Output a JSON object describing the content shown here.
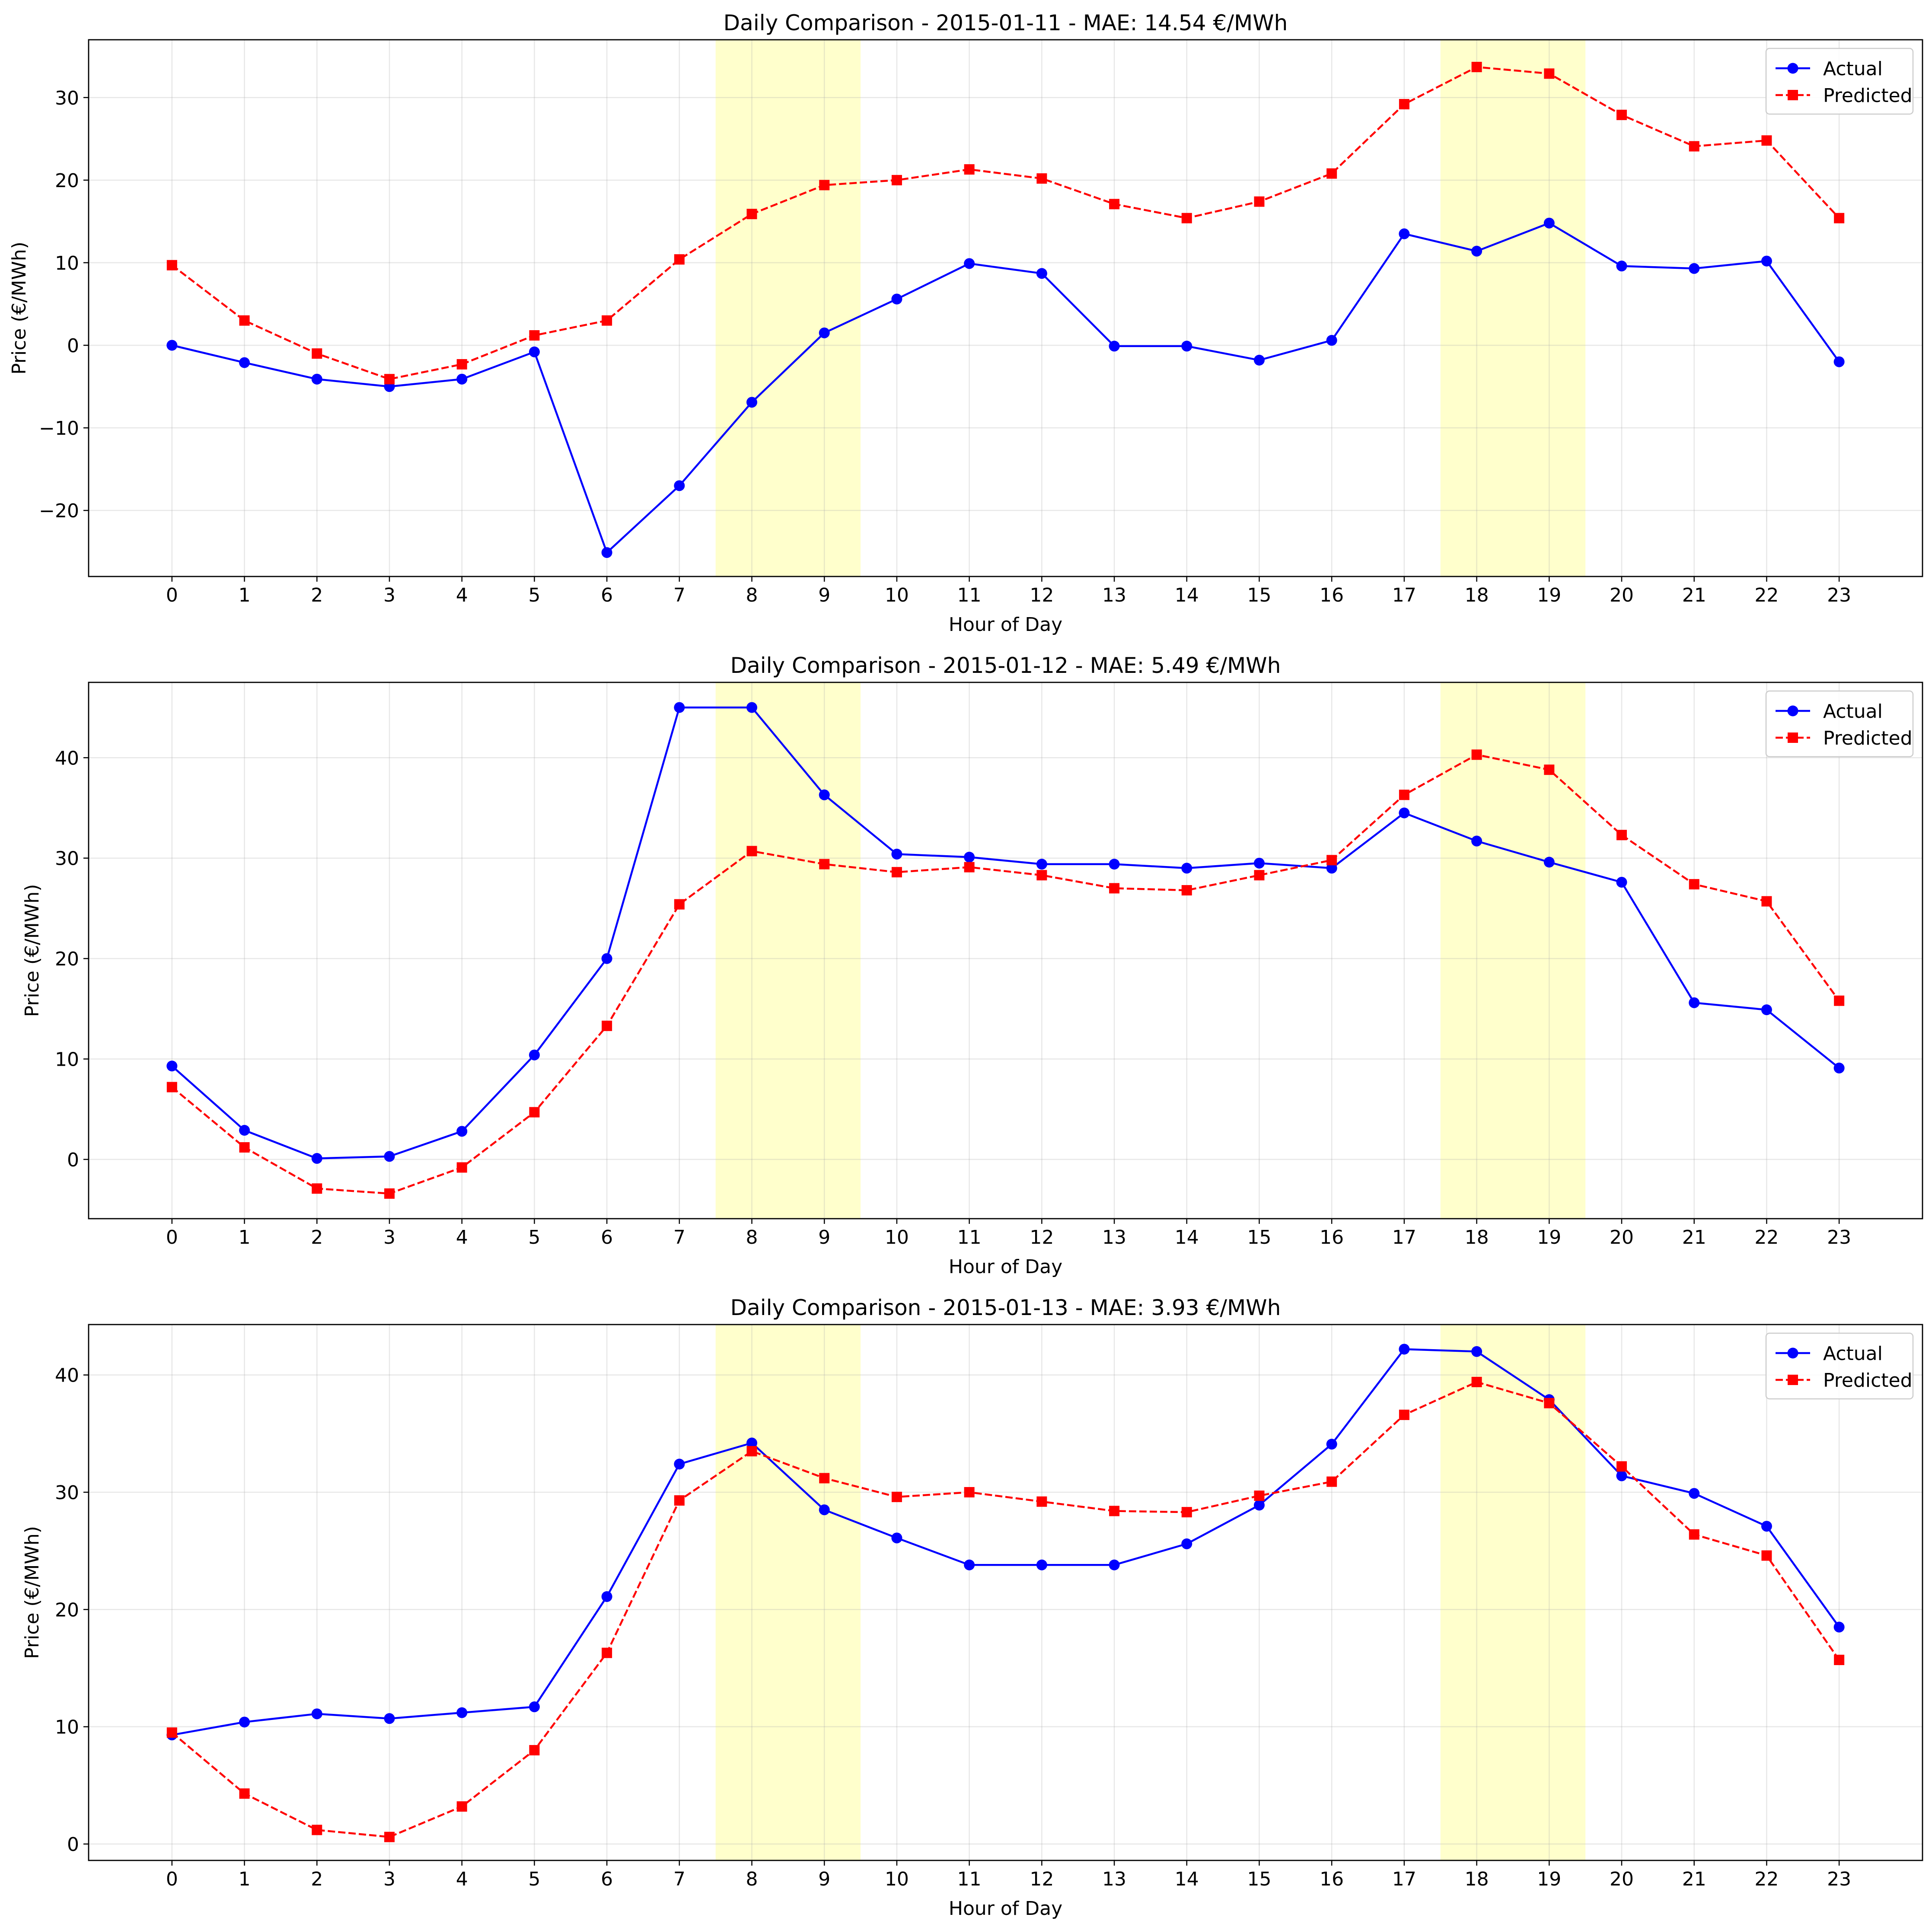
{
  "chart_data": [
    {
      "type": "line",
      "title": "Daily Comparison - 2015-01-11 - MAE: 14.54 €/MWh",
      "xlabel": "Hour of Day",
      "ylabel": "Price (€/MWh)",
      "x": [
        0,
        1,
        2,
        3,
        4,
        5,
        6,
        7,
        8,
        9,
        10,
        11,
        12,
        13,
        14,
        15,
        16,
        17,
        18,
        19,
        20,
        21,
        22,
        23
      ],
      "xlim": [
        -1.15,
        24.15
      ],
      "ylim": [
        -28,
        37
      ],
      "yticks": [
        -20,
        -10,
        0,
        10,
        20,
        30
      ],
      "grid": true,
      "legend_position": "top-right",
      "highlight_bands": [
        [
          7.5,
          9.5
        ],
        [
          17.5,
          19.5
        ]
      ],
      "series": [
        {
          "name": "Actual",
          "color": "#0000ff",
          "linestyle": "solid",
          "marker": "circle",
          "values": [
            0.0,
            -2.1,
            -4.1,
            -5.0,
            -4.1,
            -0.8,
            -25.1,
            -17.0,
            -6.9,
            1.5,
            5.6,
            9.9,
            8.7,
            -0.1,
            -0.1,
            -1.8,
            0.6,
            13.5,
            11.4,
            14.8,
            9.6,
            9.3,
            10.2,
            -2.0
          ]
        },
        {
          "name": "Predicted",
          "color": "#ff0000",
          "linestyle": "dashed",
          "marker": "square",
          "values": [
            9.7,
            3.0,
            -1.0,
            -4.1,
            -2.3,
            1.2,
            3.0,
            10.4,
            15.9,
            19.4,
            20.0,
            21.3,
            20.2,
            17.1,
            15.4,
            17.4,
            20.8,
            29.2,
            33.7,
            32.9,
            27.9,
            24.1,
            24.8,
            15.4
          ]
        }
      ]
    },
    {
      "type": "line",
      "title": "Daily Comparison - 2015-01-12 - MAE: 5.49 €/MWh",
      "xlabel": "Hour of Day",
      "ylabel": "Price (€/MWh)",
      "x": [
        0,
        1,
        2,
        3,
        4,
        5,
        6,
        7,
        8,
        9,
        10,
        11,
        12,
        13,
        14,
        15,
        16,
        17,
        18,
        19,
        20,
        21,
        22,
        23
      ],
      "xlim": [
        -1.15,
        24.15
      ],
      "ylim": [
        -5.9,
        47.5
      ],
      "yticks": [
        0,
        10,
        20,
        30,
        40
      ],
      "grid": true,
      "legend_position": "top-right",
      "highlight_bands": [
        [
          7.5,
          9.5
        ],
        [
          17.5,
          19.5
        ]
      ],
      "series": [
        {
          "name": "Actual",
          "color": "#0000ff",
          "linestyle": "solid",
          "marker": "circle",
          "values": [
            9.3,
            2.9,
            0.1,
            0.3,
            2.8,
            10.4,
            20.0,
            45.0,
            45.0,
            36.3,
            30.4,
            30.1,
            29.4,
            29.4,
            29.0,
            29.5,
            29.0,
            34.5,
            31.7,
            29.6,
            27.6,
            15.6,
            14.9,
            9.1
          ]
        },
        {
          "name": "Predicted",
          "color": "#ff0000",
          "linestyle": "dashed",
          "marker": "square",
          "values": [
            7.2,
            1.2,
            -2.9,
            -3.4,
            -0.8,
            4.7,
            13.3,
            25.4,
            30.7,
            29.4,
            28.6,
            29.1,
            28.3,
            27.0,
            26.8,
            28.3,
            29.8,
            36.3,
            40.3,
            38.8,
            32.3,
            27.4,
            25.7,
            15.8
          ]
        }
      ]
    },
    {
      "type": "line",
      "title": "Daily Comparison - 2015-01-13 - MAE: 3.93 €/MWh",
      "xlabel": "Hour of Day",
      "ylabel": "Price (€/MWh)",
      "x": [
        0,
        1,
        2,
        3,
        4,
        5,
        6,
        7,
        8,
        9,
        10,
        11,
        12,
        13,
        14,
        15,
        16,
        17,
        18,
        19,
        20,
        21,
        22,
        23
      ],
      "xlim": [
        -1.15,
        24.15
      ],
      "ylim": [
        -1.4,
        44.3
      ],
      "yticks": [
        0,
        10,
        20,
        30,
        40
      ],
      "grid": true,
      "legend_position": "top-right",
      "highlight_bands": [
        [
          7.5,
          9.5
        ],
        [
          17.5,
          19.5
        ]
      ],
      "series": [
        {
          "name": "Actual",
          "color": "#0000ff",
          "linestyle": "solid",
          "marker": "circle",
          "values": [
            9.3,
            10.4,
            11.1,
            10.7,
            11.2,
            11.7,
            21.1,
            32.4,
            34.2,
            28.5,
            26.1,
            23.8,
            23.8,
            23.8,
            25.6,
            28.9,
            34.1,
            42.2,
            42.0,
            37.9,
            31.4,
            29.9,
            27.1,
            18.5
          ]
        },
        {
          "name": "Predicted",
          "color": "#ff0000",
          "linestyle": "dashed",
          "marker": "square",
          "values": [
            9.5,
            4.3,
            1.2,
            0.6,
            3.2,
            8.0,
            16.3,
            29.3,
            33.5,
            31.2,
            29.6,
            30.0,
            29.2,
            28.4,
            28.3,
            29.7,
            30.9,
            36.6,
            39.4,
            37.6,
            32.2,
            26.4,
            24.6,
            15.7
          ]
        }
      ]
    }
  ]
}
